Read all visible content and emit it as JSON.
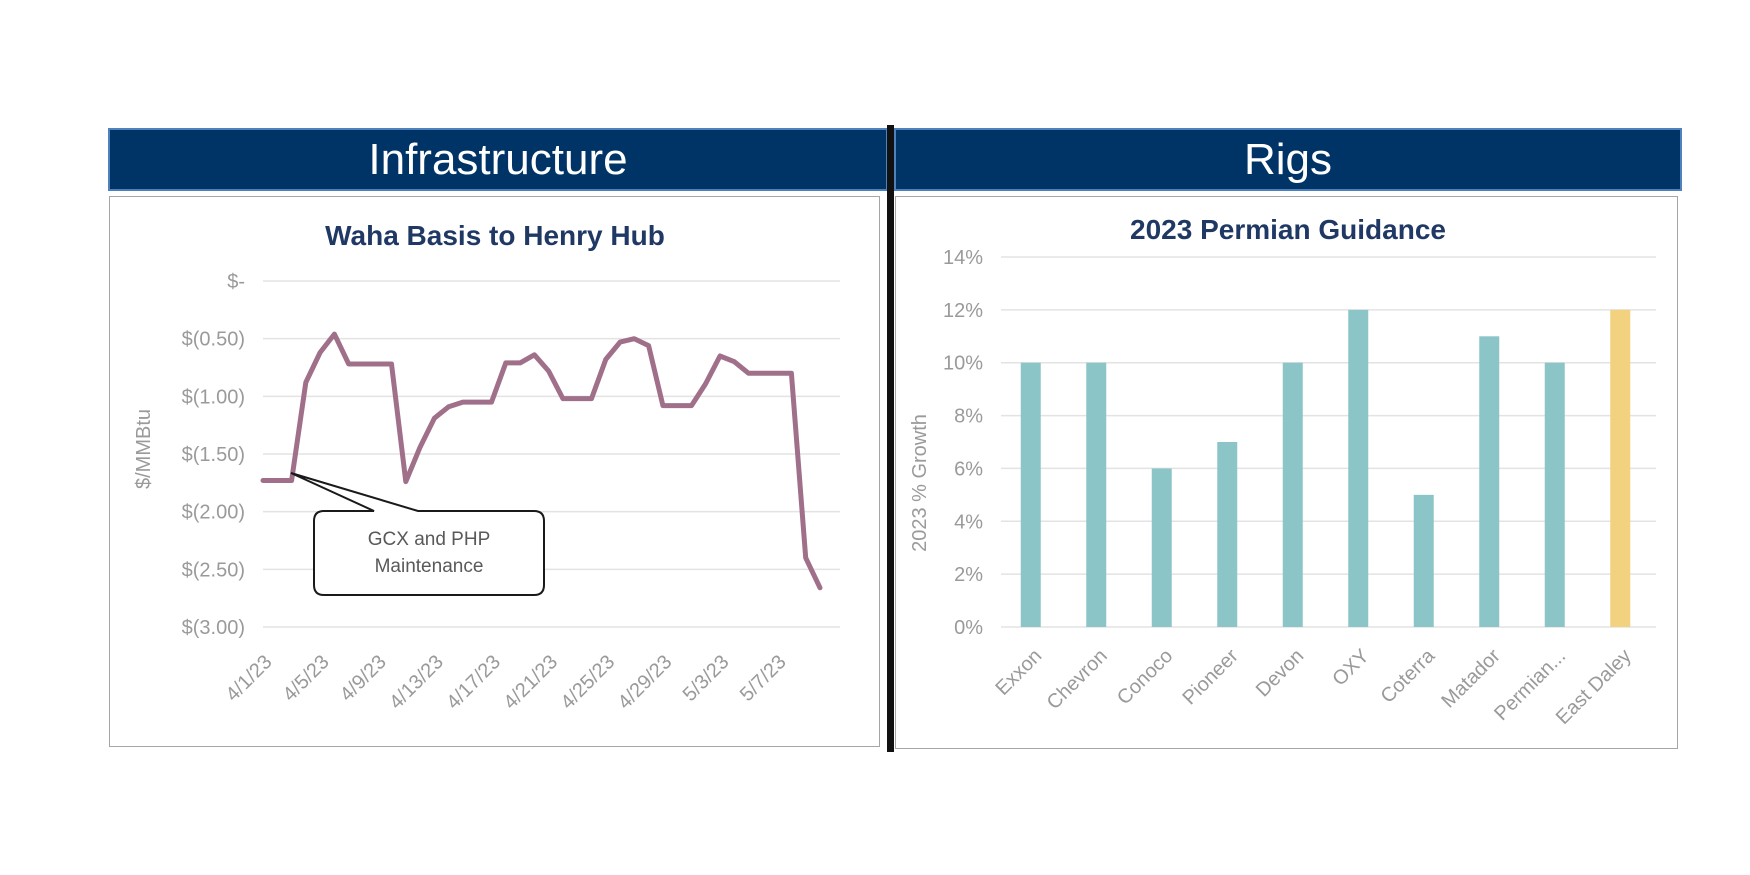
{
  "banners": {
    "left": "Infrastructure",
    "right": "Rigs"
  },
  "chart_data": [
    {
      "type": "line",
      "title": "Waha Basis to Henry Hub",
      "ylabel": "$/MMBtu",
      "xlabel": "",
      "ylim": [
        -3.0,
        0.0
      ],
      "y_ticks": [
        "$-",
        "$(0.50)",
        "$(1.00)",
        "$(1.50)",
        "$(2.00)",
        "$(2.50)",
        "$(3.00)"
      ],
      "x_tick_labels": [
        "4/1/23",
        "4/5/23",
        "4/9/23",
        "4/13/23",
        "4/17/23",
        "4/21/23",
        "4/25/23",
        "4/29/23",
        "5/3/23",
        "5/7/23"
      ],
      "x_start": "4/1/23",
      "grid": true,
      "line_color": "#a0708a",
      "series": [
        {
          "values": [
            -1.73,
            -1.73,
            -1.73,
            -0.88,
            -0.62,
            -0.46,
            -0.72,
            -0.72,
            -0.72,
            -0.72,
            -1.74,
            -1.44,
            -1.19,
            -1.09,
            -1.05,
            -1.05,
            -1.05,
            -0.71,
            -0.71,
            -0.64,
            -0.78,
            -1.02,
            -1.02,
            -1.02,
            -0.68,
            -0.53,
            -0.5,
            -0.56,
            -1.08,
            -1.08,
            -1.08,
            -0.89,
            -0.65,
            -0.7,
            -0.8,
            -0.8,
            -0.8,
            -0.8,
            -2.4,
            -2.66
          ]
        }
      ],
      "annotation": "GCX and PHP\nMaintenance",
      "annotation_lines": [
        "GCX and PHP",
        "Maintenance"
      ]
    },
    {
      "type": "bar",
      "title": "2023 Permian Guidance",
      "ylabel": "2023 % Growth",
      "xlabel": "",
      "ylim": [
        0,
        14
      ],
      "y_ticks": [
        "0%",
        "2%",
        "4%",
        "6%",
        "8%",
        "10%",
        "12%",
        "14%"
      ],
      "grid": true,
      "categories": [
        "Exxon",
        "Chevron",
        "Conoco",
        "Pioneer",
        "Devon",
        "OXY",
        "Coterra",
        "Matador",
        "Permian...",
        "East Daley"
      ],
      "values": [
        10,
        10,
        6,
        7,
        10,
        12,
        5,
        11,
        10,
        12
      ],
      "colors": [
        "#8cc5c8",
        "#8cc5c8",
        "#8cc5c8",
        "#8cc5c8",
        "#8cc5c8",
        "#8cc5c8",
        "#8cc5c8",
        "#8cc5c8",
        "#8cc5c8",
        "#f2d27f"
      ]
    }
  ]
}
